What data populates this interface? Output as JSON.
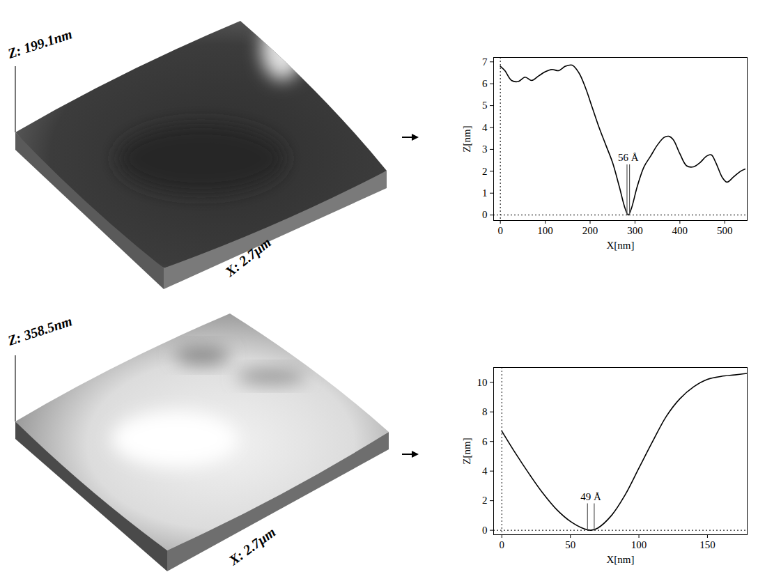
{
  "chart_data": [
    {
      "type": "line",
      "x": [
        0,
        10,
        25,
        40,
        55,
        70,
        85,
        100,
        115,
        130,
        145,
        160,
        175,
        190,
        205,
        220,
        235,
        250,
        265,
        278,
        285,
        292,
        305,
        320,
        335,
        350,
        365,
        375,
        385,
        400,
        415,
        430,
        445,
        460,
        470,
        480,
        495,
        505,
        520,
        535,
        545
      ],
      "values": [
        6.8,
        6.6,
        6.15,
        6.1,
        6.3,
        6.15,
        6.35,
        6.55,
        6.65,
        6.6,
        6.8,
        6.85,
        6.5,
        5.8,
        4.9,
        4.0,
        3.2,
        2.4,
        1.3,
        0.3,
        0.0,
        0.3,
        1.3,
        2.2,
        2.7,
        3.2,
        3.55,
        3.6,
        3.45,
        2.8,
        2.25,
        2.2,
        2.4,
        2.7,
        2.75,
        2.4,
        1.7,
        1.5,
        1.75,
        2.0,
        2.1
      ],
      "color": "#000000",
      "xlim": [
        -15,
        550
      ],
      "ylim": [
        -0.25,
        7.2
      ],
      "xticks": [
        0,
        100,
        200,
        300,
        400,
        500
      ],
      "yticks": [
        0,
        1,
        2,
        3,
        4,
        5,
        6,
        7
      ],
      "x_label": "X[nm]",
      "y_label": "Z[nm]",
      "annotations": [
        {
          "text": "56 Å",
          "x": [
            282.2,
            287.8
          ],
          "y": 2.3
        }
      ]
    },
    {
      "type": "line",
      "x": [
        0,
        10,
        20,
        30,
        40,
        50,
        60,
        65,
        70,
        80,
        90,
        100,
        110,
        120,
        130,
        140,
        150,
        160,
        170,
        179
      ],
      "values": [
        6.7,
        5.2,
        3.8,
        2.5,
        1.4,
        0.6,
        0.1,
        0.0,
        0.15,
        1.0,
        2.4,
        4.2,
        6.0,
        7.7,
        8.9,
        9.7,
        10.2,
        10.4,
        10.5,
        10.6
      ],
      "color": "#000000",
      "xlim": [
        -6,
        179
      ],
      "ylim": [
        -0.3,
        11
      ],
      "xticks": [
        0,
        50,
        100,
        150
      ],
      "yticks": [
        0,
        2,
        4,
        6,
        8,
        10
      ],
      "x_label": "X[nm]",
      "y_label": "Z[nm]",
      "annotations": [
        {
          "text": "49 Å",
          "x": [
            62.5,
            67.4
          ],
          "y": 1.8
        }
      ]
    }
  ],
  "surfaces": [
    {
      "z_label": "Z: 199.1nm",
      "x_label": "X: 2.7μm"
    },
    {
      "z_label": "Z: 358.5nm",
      "x_label": "X: 2.7μm"
    }
  ]
}
